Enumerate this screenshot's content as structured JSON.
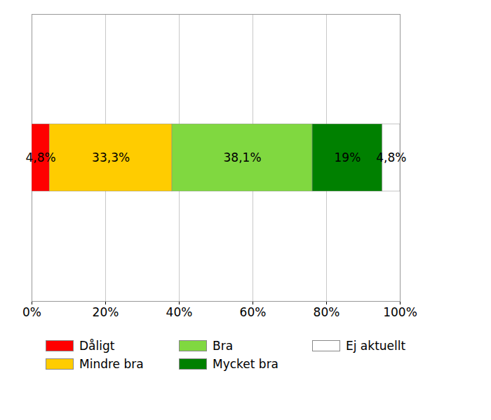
{
  "chart_data": {
    "type": "bar",
    "orientation": "horizontal",
    "stacked": true,
    "data_labels": true,
    "grid": true,
    "legend": "bottom",
    "tick_labels": "x",
    "categories": [
      null
    ],
    "xlim": [
      0,
      100
    ],
    "xticks": [
      {
        "value": 0,
        "label": "0%"
      },
      {
        "value": 20,
        "label": "20%"
      },
      {
        "value": 40,
        "label": "40%"
      },
      {
        "value": 60,
        "label": "60%"
      },
      {
        "value": 80,
        "label": "80%"
      },
      {
        "value": 100,
        "label": "100%"
      }
    ],
    "series": [
      {
        "name": "Dåligt",
        "color": "#ff0000",
        "values": [
          4.8
        ],
        "value_labels": [
          "4,8%"
        ]
      },
      {
        "name": "Mindre bra",
        "color": "#ffcc00",
        "values": [
          33.3
        ],
        "value_labels": [
          "33,3%"
        ]
      },
      {
        "name": "Bra",
        "color": "#80d840",
        "values": [
          38.1
        ],
        "value_labels": [
          "38,1%"
        ]
      },
      {
        "name": "Mycket bra",
        "color": "#008000",
        "values": [
          19
        ],
        "value_labels": [
          "19%"
        ]
      },
      {
        "name": "Ej aktuellt",
        "color": "#ffffff",
        "values": [
          4.8
        ],
        "value_labels": [
          "4,8%"
        ]
      }
    ]
  }
}
